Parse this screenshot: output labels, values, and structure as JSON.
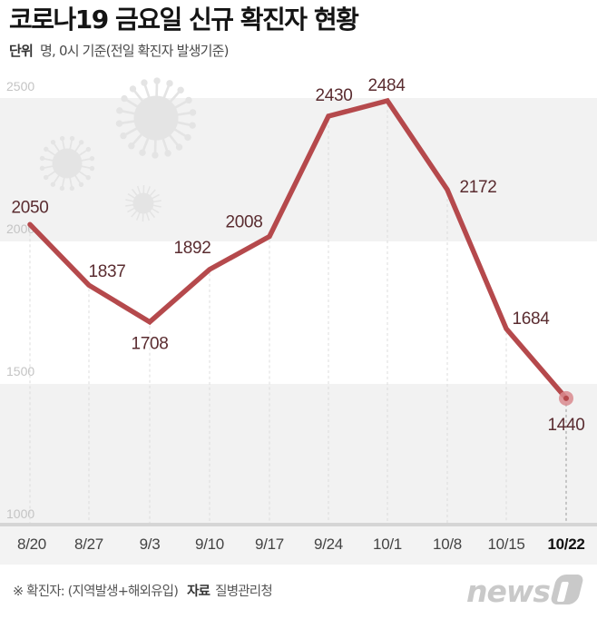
{
  "header": {
    "title": "코로나19 금요일 신규 확진자 현황",
    "unit_key": "단위",
    "unit_text": "명, 0시 기준(전일 확진자 발생기준)"
  },
  "footer": {
    "note": "※ 확진자: (지역발생+해외유입)",
    "source_key": "자료",
    "source": "질병관리청"
  },
  "logo": {
    "text": "news",
    "mark": "1"
  },
  "colors": {
    "line": "#b5494c",
    "label": "#5a2c30",
    "band": "#f2f2f2",
    "marker": "#d98a8e",
    "axis_label": "#c4c4c4"
  },
  "chart_data": {
    "type": "line",
    "title": "코로나19 금요일 신규 확진자 현황",
    "subtitle": "단위 명, 0시 기준(전일 확진자 발생기준)",
    "xlabel": "",
    "ylabel": "명",
    "categories": [
      "8/20",
      "8/27",
      "9/3",
      "9/10",
      "9/17",
      "9/24",
      "10/1",
      "10/8",
      "10/15",
      "10/22"
    ],
    "series": [
      {
        "name": "신규 확진자",
        "values": [
          2050,
          1837,
          1708,
          1892,
          2008,
          2430,
          2484,
          2172,
          1684,
          1440
        ]
      }
    ],
    "yticks": [
      1000,
      1500,
      2000,
      2500
    ],
    "ylim": [
      1000,
      2500
    ],
    "grid": "alternating horizontal bands, dashed vertical lines",
    "highlight": "10/22",
    "annotations": [
      "※ 확진자: (지역발생+해외유입)",
      "자료 질병관리청"
    ]
  }
}
